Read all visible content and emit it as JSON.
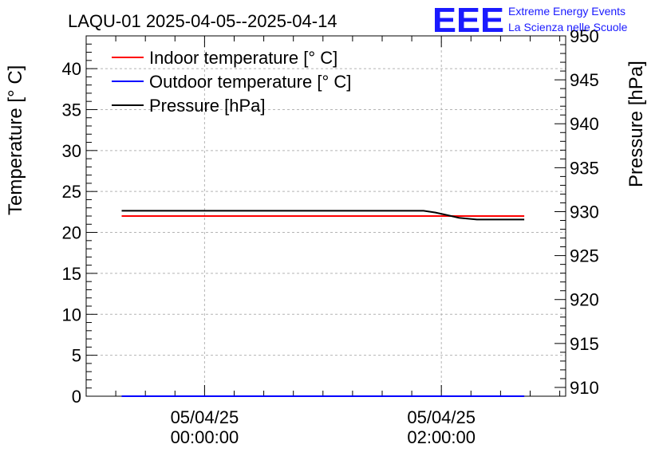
{
  "chart_data": {
    "type": "line",
    "title": "LAQU-01 2025-04-05--2025-04-14",
    "branding": {
      "logo_text": "EEE",
      "line1": "Extreme Energy Events",
      "line2": "La Scienza nelle Scuole",
      "color": "#1a1aff"
    },
    "ylabel_left": "Temperature [° C]",
    "ylabel_right": "Pressure [hPa]",
    "ylim_left": [
      0,
      44
    ],
    "ylim_right": [
      909,
      950
    ],
    "yticks_left": [
      0,
      5,
      10,
      15,
      20,
      25,
      30,
      35,
      40
    ],
    "yticks_right": [
      910,
      915,
      920,
      925,
      930,
      935,
      940,
      945,
      950
    ],
    "x_unit": "hours from 05/04/25 00:00:00",
    "xlim": [
      -1.0,
      3.05
    ],
    "xticks": [
      {
        "value": 0,
        "date": "05/04/25",
        "time": "00:00:00"
      },
      {
        "value": 2,
        "date": "05/04/25",
        "time": "02:00:00"
      }
    ],
    "grid": true,
    "legend_position": "top-left",
    "series": [
      {
        "name": "Indoor temperature [° C]",
        "axis": "left",
        "color": "#ff0000",
        "x": [
          -0.7,
          2.7
        ],
        "y": [
          22.0,
          22.0
        ]
      },
      {
        "name": "Outdoor temperature [° C]",
        "axis": "left",
        "color": "#0000ff",
        "x": [
          -0.7,
          2.7
        ],
        "y": [
          0.0,
          0.0
        ]
      },
      {
        "name": "Pressure [hPa]",
        "axis": "right",
        "color": "#000000",
        "x": [
          -0.7,
          1.85,
          1.95,
          2.05,
          2.15,
          2.3,
          2.7
        ],
        "y": [
          930.1,
          930.1,
          929.9,
          929.6,
          929.3,
          929.1,
          929.1
        ]
      }
    ]
  }
}
